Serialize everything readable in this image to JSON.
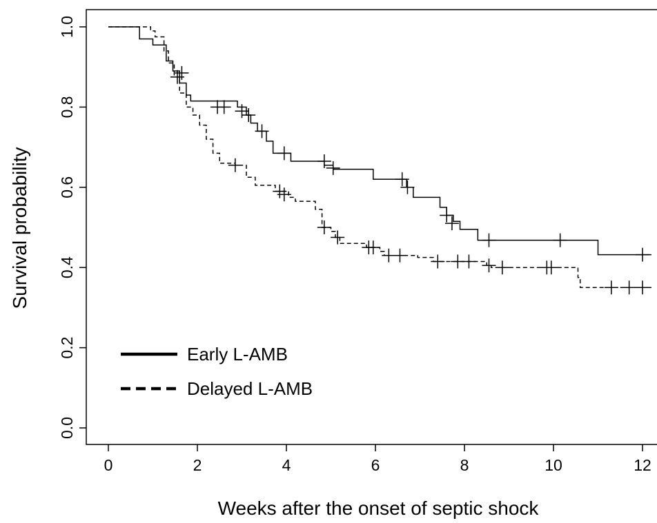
{
  "chart_data": {
    "type": "line",
    "subtype": "kaplan-meier",
    "title": "",
    "xlabel": "Weeks after the onset of septic shock",
    "ylabel": "Survival probability",
    "xlim": [
      0,
      12
    ],
    "ylim": [
      0,
      1
    ],
    "x_ticks": [
      "0",
      "2",
      "4",
      "6",
      "8",
      "10",
      "12"
    ],
    "y_ticks": [
      "0.0",
      "0.2",
      "0.4",
      "0.6",
      "0.8",
      "1.0"
    ],
    "grid": false,
    "legend_position": "bottom-left",
    "series": [
      {
        "name": "Early L-AMB",
        "line_style": "solid",
        "steps": [
          [
            0,
            1.0
          ],
          [
            0.7,
            0.97
          ],
          [
            1.0,
            0.955
          ],
          [
            1.3,
            0.915
          ],
          [
            1.45,
            0.89
          ],
          [
            1.6,
            0.86
          ],
          [
            1.75,
            0.83
          ],
          [
            1.85,
            0.815
          ],
          [
            2.9,
            0.8
          ],
          [
            3.1,
            0.78
          ],
          [
            3.2,
            0.76
          ],
          [
            3.35,
            0.74
          ],
          [
            3.55,
            0.715
          ],
          [
            3.7,
            0.685
          ],
          [
            4.1,
            0.665
          ],
          [
            4.85,
            0.655
          ],
          [
            5.05,
            0.645
          ],
          [
            5.95,
            0.62
          ],
          [
            6.7,
            0.6
          ],
          [
            6.85,
            0.575
          ],
          [
            7.1,
            0.575
          ],
          [
            7.45,
            0.55
          ],
          [
            7.6,
            0.53
          ],
          [
            7.75,
            0.515
          ],
          [
            7.9,
            0.495
          ],
          [
            8.3,
            0.468
          ],
          [
            11.0,
            0.432
          ],
          [
            12.2,
            0.432
          ]
        ],
        "censored": [
          [
            1.65,
            0.885
          ],
          [
            2.45,
            0.8
          ],
          [
            2.6,
            0.8
          ],
          [
            3.0,
            0.79
          ],
          [
            3.15,
            0.78
          ],
          [
            3.45,
            0.74
          ],
          [
            3.95,
            0.685
          ],
          [
            4.85,
            0.665
          ],
          [
            5.05,
            0.648
          ],
          [
            6.6,
            0.62
          ],
          [
            6.72,
            0.6
          ],
          [
            7.6,
            0.53
          ],
          [
            7.72,
            0.51
          ],
          [
            8.55,
            0.468
          ],
          [
            10.15,
            0.468
          ],
          [
            12.0,
            0.432
          ]
        ]
      },
      {
        "name": "Delayed L-AMB",
        "line_style": "dashed",
        "steps": [
          [
            0,
            1.0
          ],
          [
            0.95,
            0.99
          ],
          [
            1.05,
            0.975
          ],
          [
            1.25,
            0.94
          ],
          [
            1.35,
            0.91
          ],
          [
            1.48,
            0.875
          ],
          [
            1.6,
            0.835
          ],
          [
            1.75,
            0.8
          ],
          [
            1.9,
            0.78
          ],
          [
            2.05,
            0.755
          ],
          [
            2.2,
            0.72
          ],
          [
            2.35,
            0.685
          ],
          [
            2.5,
            0.66
          ],
          [
            2.85,
            0.655
          ],
          [
            3.1,
            0.625
          ],
          [
            3.3,
            0.605
          ],
          [
            3.75,
            0.59
          ],
          [
            4.05,
            0.575
          ],
          [
            4.2,
            0.565
          ],
          [
            4.65,
            0.545
          ],
          [
            4.8,
            0.5
          ],
          [
            5.0,
            0.49
          ],
          [
            5.1,
            0.475
          ],
          [
            5.2,
            0.46
          ],
          [
            5.8,
            0.45
          ],
          [
            6.1,
            0.44
          ],
          [
            6.2,
            0.43
          ],
          [
            6.95,
            0.425
          ],
          [
            7.3,
            0.415
          ],
          [
            8.5,
            0.405
          ],
          [
            8.6,
            0.4
          ],
          [
            10.55,
            0.375
          ],
          [
            10.6,
            0.35
          ],
          [
            12.2,
            0.35
          ]
        ],
        "censored": [
          [
            1.55,
            0.875
          ],
          [
            2.85,
            0.655
          ],
          [
            3.85,
            0.59
          ],
          [
            3.95,
            0.582
          ],
          [
            4.85,
            0.5
          ],
          [
            5.15,
            0.475
          ],
          [
            5.85,
            0.45
          ],
          [
            5.95,
            0.45
          ],
          [
            6.3,
            0.43
          ],
          [
            6.55,
            0.43
          ],
          [
            7.4,
            0.415
          ],
          [
            7.85,
            0.415
          ],
          [
            8.1,
            0.415
          ],
          [
            8.55,
            0.405
          ],
          [
            8.85,
            0.4
          ],
          [
            9.85,
            0.4
          ],
          [
            9.95,
            0.4
          ],
          [
            11.3,
            0.35
          ],
          [
            11.7,
            0.35
          ],
          [
            12.0,
            0.35
          ]
        ]
      }
    ]
  }
}
